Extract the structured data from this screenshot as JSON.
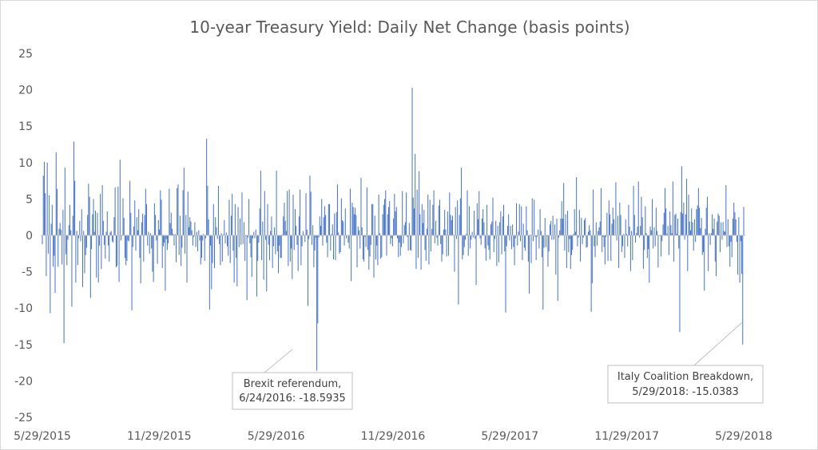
{
  "chart_data": {
    "type": "bar",
    "title": "10-year Treasury Yield: Daily Net Change (basis points)",
    "xlabel": "",
    "ylabel": "",
    "ylim": [
      -25,
      25
    ],
    "yticks": [
      25,
      20,
      15,
      10,
      5,
      0,
      -5,
      -10,
      -15,
      -20,
      -25
    ],
    "xlim": [
      "2015-05-29",
      "2018-05-29"
    ],
    "xtick_labels": [
      "5/29/2015",
      "11/29/2015",
      "5/29/2016",
      "11/29/2016",
      "5/29/2017",
      "11/29/2017",
      "5/29/2018"
    ],
    "grid": false,
    "legend": "none",
    "bar_color": "#4472c4",
    "series": [
      {
        "values": [
          -1.2,
          8.2,
          10.1,
          5.8,
          -5.6,
          10.0,
          -2.5,
          5.5,
          -10.7,
          1.6,
          4.2,
          -4.3,
          -2.8,
          -7.9,
          11.4,
          6.4,
          -4.3,
          0.9,
          1.7,
          0.8,
          -4.0,
          3.5,
          -14.8,
          9.3,
          -2.6,
          -4.1,
          -0.6,
          1.4,
          4.2,
          0.7,
          -9.8,
          2.7,
          12.9,
          7.5,
          -6.5,
          0.6,
          -4.1,
          -0.4,
          2.0,
          -0.8,
          3.6,
          -7.1,
          0.6,
          -5.2,
          -2.7,
          -1.7,
          2.8,
          7.1,
          5.3,
          -8.6,
          -1.9,
          2.9,
          5.0,
          0.5,
          3.4,
          -5.8,
          3.1,
          -6.5,
          -1.4,
          5.7,
          -4.6,
          6.9,
          2.0,
          -1.3,
          -3.2,
          0.5,
          3.3,
          -1.4,
          -3.6,
          0.4,
          0.6,
          -0.8,
          -1.0,
          2.5,
          6.6,
          -4.4,
          -4.2,
          6.7,
          -6.4,
          10.4,
          -0.7,
          -0.1,
          5.1,
          2.4,
          -3.1,
          -4.1,
          -3.5,
          -0.7,
          -0.8,
          7.5,
          3.1,
          -10.3,
          -1.6,
          1.2,
          4.8,
          -2.1,
          2.5,
          0.7,
          3.6,
          -3.1,
          -6.6,
          1.8,
          3.0,
          -3.6,
          2.8,
          6.4,
          4.3,
          -1.4,
          0.5,
          -2.5,
          0.3,
          -1.8,
          -5.0,
          -6.4,
          4.4,
          2.8,
          -0.7,
          -3.9,
          2.1,
          0.8,
          6.2,
          4.9,
          -4.5,
          -1.5,
          -1.0,
          -7.6,
          -0.5,
          -2.0,
          -1.1,
          6.4,
          1.7,
          3.1,
          0.9,
          0.2,
          -1.4,
          0.2,
          -3.7,
          6.5,
          7.0,
          -2.7,
          2.7,
          -4.2,
          -1.7,
          6.2,
          9.3,
          -2.5,
          2.8,
          -6.5,
          6.0,
          1.1,
          2.5,
          1.9,
          0.7,
          -1.4,
          -0.2,
          1.8,
          -1.6,
          0.5,
          -2.2,
          0.7,
          -0.7,
          -4.0,
          -3.1,
          -0.7,
          0.2,
          -3.5,
          -0.4,
          13.3,
          6.8,
          2.2,
          -10.2,
          -1.4,
          -7.4,
          -3.8,
          4.3,
          -4.5,
          2.5,
          1.1,
          -0.5,
          6.8,
          -1.2,
          -4.1,
          0.3,
          -3.6,
          0.1,
          2.1,
          -1.1,
          0.4,
          -1.5,
          -2.8,
          4.9,
          -3.8,
          2.7,
          5.7,
          -2.1,
          -6.5,
          4.3,
          -3.1,
          -7.0,
          3.9,
          -1.6,
          2.3,
          -1.3,
          5.9,
          -1.2,
          1.8,
          -3.5,
          -0.1,
          -8.9,
          -0.3,
          5.0,
          -1.1,
          -3.0,
          -5.7,
          -0.4,
          0.5,
          -0.4,
          0.8,
          -8.4,
          -3.5,
          -1.0,
          3.7,
          8.9,
          -3.4,
          1.9,
          -6.1,
          6.1,
          -0.6,
          -7.7,
          4.3,
          -1.3,
          -3.4,
          0.6,
          2.6,
          -4.5,
          -1.5,
          1.1,
          -2.6,
          8.9,
          -2.2,
          -5.2,
          -1.4,
          -3.1,
          -3.1,
          0.1,
          2.6,
          4.5,
          2.0,
          0.6,
          6.1,
          -4.2,
          6.3,
          -3.6,
          -1.8,
          -6.0,
          5.6,
          -2.0,
          3.6,
          1.3,
          -1.3,
          -4.9,
          2.6,
          6.3,
          -4.1,
          -1.5,
          0.6,
          0.1,
          -0.9,
          5.8,
          0.8,
          -9.7,
          -0.5,
          8.2,
          6.0,
          -1.3,
          1.4,
          -4.4,
          -2.1,
          -0.3,
          -18.6,
          -12.1,
          -0.3,
          2.6,
          1.3,
          5.0,
          -1.4,
          2.5,
          4.0,
          2.8,
          -1.0,
          -3.0,
          4.3,
          4.3,
          -2.1,
          0.2,
          1.5,
          -3.3,
          3.0,
          -3.4,
          3.2,
          7.0,
          0.4,
          -2.5,
          -2.3,
          5.1,
          2.1,
          1.9,
          -1.4,
          3.7,
          -0.4,
          0.0,
          -1.0,
          -1.8,
          6.4,
          -6.3,
          4.5,
          3.9,
          2.9,
          3.8,
          2.8,
          -4.4,
          1.2,
          0.7,
          -1.8,
          7.9,
          1.1,
          -3.3,
          -3.6,
          -0.2,
          -1.6,
          6.6,
          -2.0,
          -4.7,
          -2.9,
          -1.3,
          4.3,
          4.3,
          -5.8,
          2.7,
          -3.3,
          -1.4,
          -4.1,
          5.6,
          0.3,
          -3.2,
          -3.0,
          2.9,
          4.2,
          5.0,
          6.2,
          -2.8,
          2.9,
          3.9,
          4.7,
          -1.2,
          -0.4,
          -1.5,
          2.3,
          5.7,
          3.3,
          3.9,
          -0.4,
          -3.0,
          -1.0,
          -2.8,
          -1.6,
          6.1,
          -1.1,
          1.4,
          1.8,
          5.9,
          -0.2,
          -2.1,
          1.7,
          -2.0,
          -2.1,
          20.3,
          5.2,
          3.7,
          11.2,
          -4.6,
          6.3,
          -3.1,
          8.8,
          2.9,
          -4.7,
          4.3,
          1.7,
          3.5,
          -2.0,
          -3.5,
          0.9,
          5.6,
          -4.0,
          4.9,
          -2.2,
          0.9,
          4.2,
          6.2,
          -1.1,
          2.0,
          -0.3,
          -1.4,
          4.1,
          4.9,
          -1.2,
          -3.6,
          -2.6,
          0.8,
          3.5,
          0.8,
          -2.9,
          3.3,
          -2.8,
          5.9,
          2.8,
          2.1,
          2.7,
          0.1,
          -5.0,
          3.9,
          -0.5,
          4.8,
          -9.5,
          2.8,
          5.1,
          9.3,
          -3.3,
          -2.7,
          -1.6,
          -0.6,
          0.2,
          6.2,
          -2.8,
          4.0,
          -1.8,
          -0.6,
          0.5,
          -0.3,
          3.4,
          -0.5,
          -6.8,
          4.4,
          2.2,
          6.1,
          -0.4,
          -1.3,
          2.3,
          3.6,
          1.8,
          -1.8,
          -3.5,
          4.2,
          -1.4,
          -2.0,
          -3.3,
          1.5,
          1.9,
          5.2,
          -2.3,
          -0.5,
          2.0,
          -4.2,
          1.3,
          -3.7,
          1.8,
          3.3,
          -2.6,
          2.6,
          4.2,
          -2.2,
          -10.6,
          -1.5,
          1.3,
          2.9,
          -0.7,
          1.3,
          -1.9,
          1.5,
          -1.6,
          -4.1,
          -0.4,
          4.4,
          -1.4,
          0.5,
          4.3,
          -0.8,
          4.0,
          -3.4,
          1.6,
          -1.7,
          -2.1,
          4.0,
          0.7,
          -3.6,
          -8.0,
          0.1,
          -3.8,
          5.1,
          -0.8,
          4.9,
          -0.2,
          -3.4,
          -0.2,
          0.8,
          -1.8,
          3.6,
          0.6,
          -3.0,
          -10.2,
          -1.7,
          2.4,
          -1.6,
          -0.1,
          -4.3,
          -2.2,
          1.5,
          2.0,
          -0.6,
          2.7,
          -0.6,
          1.5,
          -5.4,
          2.3,
          -9.0,
          -0.3,
          0.7,
          2.3,
          4.7,
          2.3,
          7.2,
          -2.1,
          2.9,
          -4.5,
          3.4,
          -2.3,
          -0.5,
          -4.6,
          -2.7,
          -2.0,
          0.2,
          3.6,
          0.5,
          8.0,
          -1.5,
          -0.3,
          3.5,
          -3.6,
          2.4,
          -1.2,
          -0.3,
          2.1,
          2.4,
          -1.7,
          -1.6,
          0.5,
          1.4,
          0.7,
          -10.5,
          -6.6,
          6.3,
          -1.5,
          -3.0,
          1.8,
          -1.4,
          0.6,
          1.1,
          1.9,
          6.5,
          -2.3,
          -0.2,
          -1.6,
          -4.0,
          -0.2,
          3.1,
          -3.5,
          4.8,
          2.9,
          -3.5,
          1.6,
          3.8,
          2.2,
          0.0,
          7.3,
          -0.7,
          2.7,
          -4.5,
          4.5,
          2.8,
          -2.3,
          -1.5,
          0.2,
          -3.1,
          2.2,
          0.2,
          -1.5,
          4.2,
          1.2,
          -4.9,
          0.6,
          -3.4,
          6.8,
          2.8,
          -1.0,
          0.3,
          1.2,
          7.4,
          -0.3,
          1.3,
          5.3,
          2.5,
          -4.6,
          -2.0,
          4.0,
          0.3,
          -3.1,
          -1.9,
          -6.5,
          1.2,
          0.7,
          5.0,
          -1.8,
          1.1,
          -1.5,
          3.8,
          0.6,
          -4.4,
          0.0,
          -0.1,
          -2.9,
          -0.8,
          1.5,
          3.1,
          6.5,
          3.7,
          0.2,
          1.3,
          -2.7,
          3.3,
          1.4,
          0.3,
          7.4,
          -3.6,
          2.8,
          3.0,
          0.2,
          2.3,
          -1.8,
          -13.3,
          3.2,
          9.5,
          3.0,
          4.5,
          -0.6,
          2.9,
          7.8,
          -4.9,
          5.6,
          1.9,
          0.7,
          3.7,
          1.8,
          -2.1,
          2.2,
          -0.9,
          3.6,
          4.1,
          6.5,
          3.8,
          1.0,
          2.4,
          -2.7,
          -2.3,
          -7.6,
          0.9,
          3.8,
          5.3,
          -4.9,
          0.3,
          -1.3,
          0.3,
          2.9,
          0.9,
          2.3,
          -3.6,
          -5.6,
          1.9,
          3.0,
          2.7,
          -2.3,
          1.8,
          -0.6,
          1.8,
          0.6,
          0.5,
          6.9,
          -1.6,
          2.2,
          -1.5,
          -4.3,
          -0.9,
          -3.0,
          2.3,
          4.5,
          3.2,
          2.2,
          -0.9,
          -5.4,
          2.5,
          -6.5,
          -0.8,
          -5.3,
          -15.0,
          3.9
        ],
        "annotated": [
          {
            "text_line1": "Brexit referendum,",
            "text_line2": "6/24/2016: -18.5935"
          },
          {
            "text_line1": "Italy Coalition Breakdown,",
            "text_line2": "5/29/2018: -15.0383"
          }
        ]
      }
    ]
  }
}
